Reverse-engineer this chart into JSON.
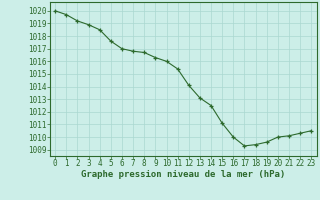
{
  "x": [
    0,
    1,
    2,
    3,
    4,
    5,
    6,
    7,
    8,
    9,
    10,
    11,
    12,
    13,
    14,
    15,
    16,
    17,
    18,
    19,
    20,
    21,
    22,
    23
  ],
  "y": [
    1020.0,
    1019.7,
    1019.2,
    1018.9,
    1018.5,
    1017.6,
    1017.0,
    1016.8,
    1016.7,
    1016.3,
    1016.0,
    1015.4,
    1014.1,
    1013.1,
    1012.5,
    1011.1,
    1010.0,
    1009.3,
    1009.4,
    1009.6,
    1010.0,
    1010.1,
    1010.3,
    1010.5
  ],
  "line_color": "#2d6a2d",
  "marker": "+",
  "marker_color": "#2d6a2d",
  "bg_color": "#cceee8",
  "grid_color": "#aad8d0",
  "axis_color": "#2d6a2d",
  "xlabel": "Graphe pression niveau de la mer (hPa)",
  "xlabel_fontsize": 6.5,
  "xlabel_color": "#2d6a2d",
  "ylabel_ticks": [
    1009,
    1010,
    1011,
    1012,
    1013,
    1014,
    1015,
    1016,
    1017,
    1018,
    1019,
    1020
  ],
  "xlim": [
    -0.5,
    23.5
  ],
  "ylim": [
    1008.5,
    1020.7
  ],
  "tick_fontsize": 5.5,
  "line_width": 0.8,
  "marker_size": 3,
  "marker_edge_width": 0.9
}
